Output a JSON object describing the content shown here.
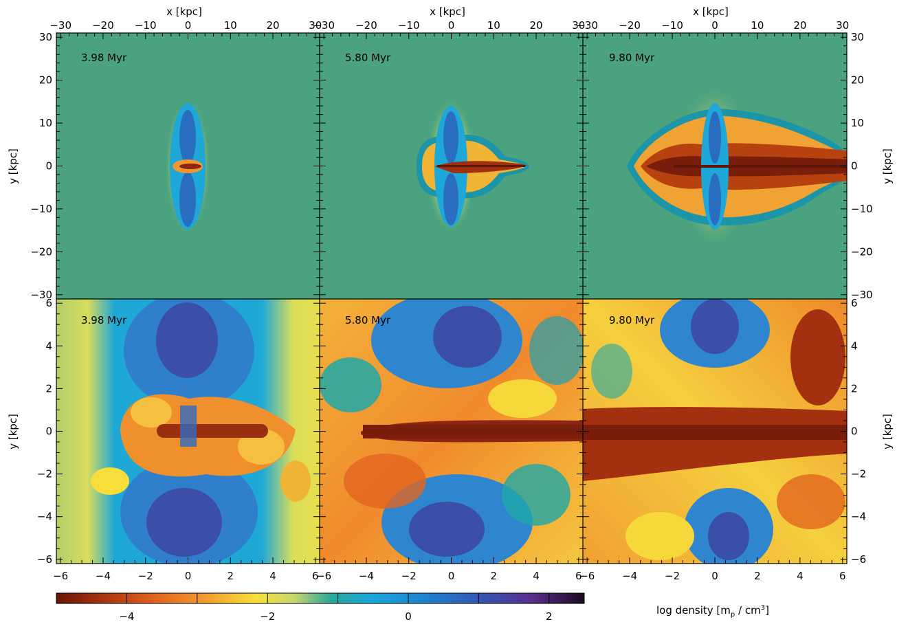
{
  "figure": {
    "x_axis_label": "x  [kpc]",
    "y_axis_label": "y  [kpc]",
    "top_x_ticks": [
      "−30",
      "−20",
      "−10",
      "0",
      "10",
      "20",
      "30"
    ],
    "top_y_ticks": [
      "30",
      "20",
      "10",
      "0",
      "−10",
      "−20",
      "−30"
    ],
    "bottom_x_ticks": [
      "−6",
      "−4",
      "−2",
      "0",
      "2",
      "4",
      "6"
    ],
    "bottom_y_ticks": [
      "6",
      "4",
      "2",
      "0",
      "−2",
      "−4",
      "−6"
    ]
  },
  "panels": [
    {
      "time": "3.98 Myr",
      "row": "top",
      "col": 0
    },
    {
      "time": "5.80 Myr",
      "row": "top",
      "col": 1
    },
    {
      "time": "9.80 Myr",
      "row": "top",
      "col": 2
    },
    {
      "time": "3.98 Myr",
      "row": "bottom",
      "col": 0
    },
    {
      "time": "5.80 Myr",
      "row": "bottom",
      "col": 1
    },
    {
      "time": "9.80 Myr",
      "row": "bottom",
      "col": 2
    }
  ],
  "colorbar": {
    "label": "log density  [m",
    "label_sub": "p",
    "label_tail": " / cm",
    "label_sup": "3",
    "label_end": "]",
    "ticks": [
      "−4",
      "−2",
      "0",
      "2"
    ],
    "tick_values": [
      -4,
      -2,
      0,
      2
    ],
    "range": [
      -5.0,
      2.5
    ]
  },
  "colors": {
    "background_green": "#4aa27f",
    "dense_brown": "#7a1e0c",
    "mid_orange": "#f08a2c",
    "yellow": "#f7de3a",
    "cyan_blue": "#1ea8d8",
    "deep_blue": "#2a55b8",
    "purple": "#5b2a86"
  }
}
